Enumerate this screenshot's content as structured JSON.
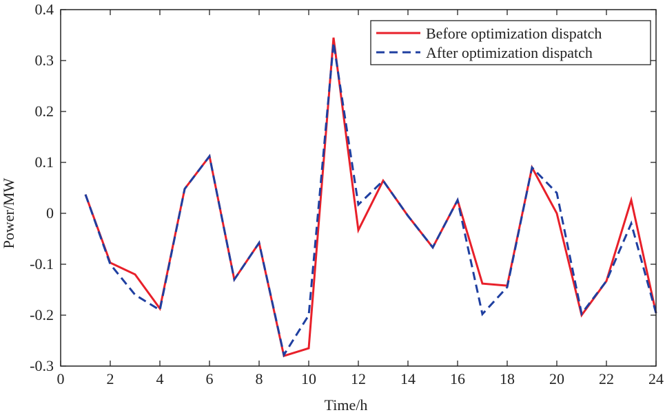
{
  "chart_data": {
    "type": "line",
    "xlabel": "Time/h",
    "ylabel": "Power/MW",
    "xlim": [
      0,
      24
    ],
    "ylim": [
      -0.3,
      0.4
    ],
    "xticks": [
      0,
      2,
      4,
      6,
      8,
      10,
      12,
      14,
      16,
      18,
      20,
      22,
      24
    ],
    "yticks": [
      -0.3,
      -0.2,
      -0.1,
      0,
      0.1,
      0.2,
      0.3,
      0.4
    ],
    "ytick_labels": [
      "-0.3",
      "-0.2",
      "-0.1",
      "0",
      "0.1",
      "0.2",
      "0.3",
      "0.4"
    ],
    "grid": false,
    "legend_position": "top-right",
    "x": [
      1,
      2,
      3,
      4,
      5,
      6,
      7,
      8,
      9,
      10,
      11,
      12,
      13,
      14,
      15,
      16,
      17,
      18,
      19,
      20,
      21,
      22,
      23,
      24
    ],
    "series": [
      {
        "name": "Before optimization dispatch",
        "color": "#e8202a",
        "style": "solid",
        "values": [
          0.037,
          -0.097,
          -0.12,
          -0.187,
          0.048,
          0.112,
          -0.13,
          -0.058,
          -0.28,
          -0.265,
          0.345,
          -0.033,
          0.064,
          -0.005,
          -0.067,
          0.026,
          -0.138,
          -0.142,
          0.09,
          0.0,
          -0.2,
          -0.133,
          0.026,
          -0.196
        ]
      },
      {
        "name": "After optimization dispatch",
        "color": "#1f3fa0",
        "style": "dashed",
        "values": [
          0.037,
          -0.1,
          -0.16,
          -0.19,
          0.048,
          0.112,
          -0.13,
          -0.058,
          -0.278,
          -0.2,
          0.335,
          0.017,
          0.064,
          -0.005,
          -0.067,
          0.026,
          -0.198,
          -0.145,
          0.09,
          0.04,
          -0.197,
          -0.133,
          -0.02,
          -0.196
        ]
      }
    ]
  }
}
